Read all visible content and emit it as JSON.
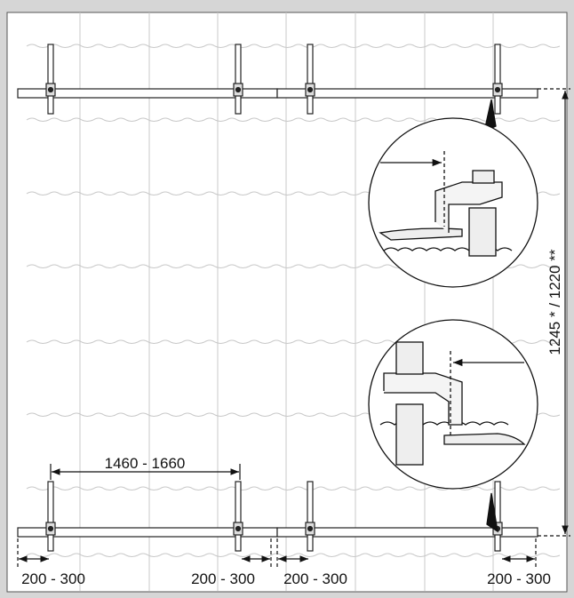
{
  "dimensions": {
    "width_range": "1460 - 1660",
    "height_range": "1245 * / 1220 **",
    "edge_offsets": [
      "200 - 300",
      "200 - 300",
      "200 - 300",
      "200 - 300"
    ]
  }
}
